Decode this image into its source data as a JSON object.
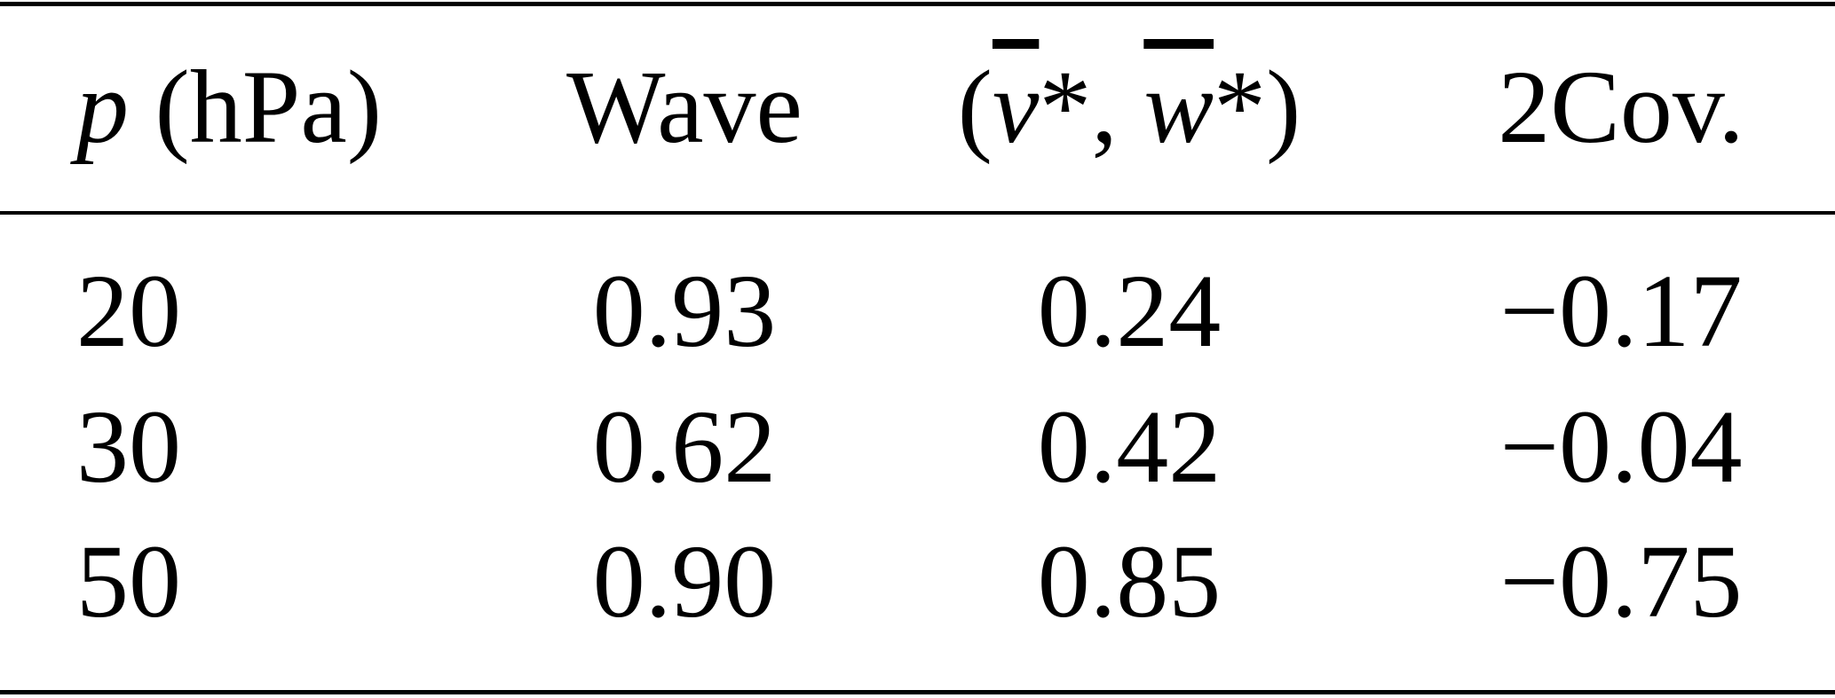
{
  "table": {
    "headers": {
      "pressure_var": "p",
      "pressure_unit": " (hPa)",
      "wave": "Wave",
      "mean_open": "(",
      "mean_v": "v",
      "mean_star1": "*, ",
      "mean_w": "w",
      "mean_star2": "*)",
      "cov": "2Cov."
    },
    "rows": [
      {
        "p": "20",
        "wave": "0.93",
        "mean": "0.24",
        "cov": "−0.17"
      },
      {
        "p": "30",
        "wave": "0.62",
        "mean": "0.42",
        "cov": "−0.04"
      },
      {
        "p": "50",
        "wave": "0.90",
        "mean": "0.85",
        "cov": "−0.75"
      }
    ]
  }
}
